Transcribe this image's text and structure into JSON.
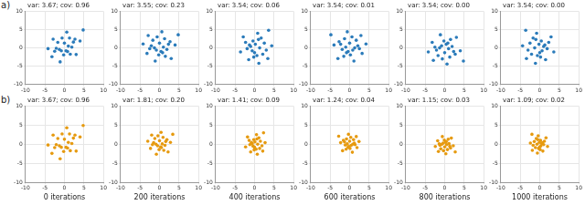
{
  "panel_labels": [
    "a)",
    "b)"
  ],
  "chart_data": [
    {
      "type": "scatter",
      "title": "var: 3.67; cov: 0.96",
      "color": "#2b7bba",
      "marker": "circle",
      "grid": true,
      "xlim": [
        -10,
        10
      ],
      "ylim": [
        -10,
        10
      ],
      "xticks": [
        -10,
        -5,
        0,
        5,
        10
      ],
      "yticks": [
        -10,
        -5,
        0,
        5,
        10
      ],
      "x": [
        0.4,
        -2.1,
        2.7,
        -0.6,
        1.5,
        -3.2,
        1.0,
        -1.1,
        4.0,
        -1.7,
        0.0,
        1.9,
        -4.2,
        0.6,
        -0.8,
        3.0,
        -2.5,
        1.3,
        -0.2,
        2.3,
        -1.3,
        0.8,
        -2.9,
        4.8
      ],
      "values": [
        -0.8,
        -0.1,
        2.4,
        2.7,
        -1.7,
        -2.4,
        0.5,
        -3.8,
        1.9,
        1.5,
        1.3,
        0.2,
        -0.2,
        4.3,
        -0.8,
        -1.8,
        -0.9,
        2.7,
        -1.9,
        1.6,
        -0.4,
        -1.0,
        2.4,
        4.9
      ]
    },
    {
      "type": "scatter",
      "title": "var: 3.55; cov: 0.23",
      "color": "#2b7bba",
      "marker": "circle",
      "grid": true,
      "xlim": [
        -10,
        10
      ],
      "ylim": [
        -10,
        10
      ],
      "xticks": [
        -10,
        -5,
        0,
        5,
        10
      ],
      "yticks": [
        -10,
        -5,
        0,
        5,
        10
      ],
      "x": [
        0.4,
        -2.1,
        2.7,
        -0.6,
        1.5,
        -3.2,
        1.0,
        -1.1,
        4.0,
        -1.7,
        0.0,
        1.9,
        -4.2,
        0.6,
        -0.8,
        3.0,
        -2.5,
        1.3,
        -0.2,
        2.3,
        -1.3,
        0.8,
        -2.9,
        4.8
      ],
      "values": [
        -1.0,
        0.6,
        1.7,
        3.0,
        -2.3,
        -1.5,
        0.2,
        -3.6,
        0.8,
        2.1,
        1.3,
        -0.4,
        1.1,
        4.4,
        -0.6,
        -2.9,
        -0.2,
        2.5,
        -1.9,
        1.0,
        0.0,
        -1.3,
        3.4,
        3.6
      ]
    },
    {
      "type": "scatter",
      "title": "var: 3.54; cov: 0.06",
      "color": "#2b7bba",
      "marker": "circle",
      "grid": true,
      "xlim": [
        -10,
        10
      ],
      "ylim": [
        -10,
        10
      ],
      "xticks": [
        -10,
        -5,
        0,
        5,
        10
      ],
      "yticks": [
        -10,
        -5,
        0,
        5,
        10
      ],
      "x": [
        -1.0,
        0.6,
        1.7,
        3.0,
        -2.3,
        -1.5,
        0.2,
        -3.6,
        0.8,
        2.1,
        1.3,
        -0.4,
        1.1,
        4.4,
        -0.6,
        -2.9,
        -0.2,
        2.5,
        -1.9,
        1.0,
        0.0,
        -1.3,
        3.4,
        3.6
      ],
      "values": [
        0.4,
        -2.1,
        2.7,
        -0.6,
        1.5,
        -3.2,
        1.0,
        -1.1,
        4.0,
        -1.7,
        0.0,
        1.9,
        -4.2,
        0.6,
        -0.8,
        3.0,
        -2.5,
        1.3,
        -0.2,
        2.3,
        -1.3,
        0.8,
        -2.9,
        4.8
      ]
    },
    {
      "type": "scatter",
      "title": "var: 3.54; cov: 0.01",
      "color": "#2b7bba",
      "marker": "circle",
      "grid": true,
      "xlim": [
        -10,
        10
      ],
      "ylim": [
        -10,
        10
      ],
      "xticks": [
        -10,
        -5,
        0,
        5,
        10
      ],
      "yticks": [
        -10,
        -5,
        0,
        5,
        10
      ],
      "x": [
        -0.4,
        2.1,
        -2.7,
        0.6,
        -1.5,
        3.2,
        -1.0,
        1.1,
        -4.0,
        1.7,
        0.0,
        -1.9,
        4.2,
        -0.6,
        0.8,
        -3.0,
        2.5,
        -1.3,
        0.2,
        -2.3,
        1.3,
        -0.8,
        2.9,
        -4.8
      ],
      "values": [
        -1.0,
        0.6,
        1.7,
        3.0,
        -2.3,
        -1.5,
        0.2,
        -3.6,
        0.8,
        2.1,
        1.3,
        -0.4,
        1.1,
        4.4,
        -0.6,
        -2.9,
        -0.2,
        2.5,
        -1.9,
        1.0,
        0.0,
        -1.3,
        3.4,
        3.6
      ]
    },
    {
      "type": "scatter",
      "title": "var: 3.54; cov: 0.00",
      "color": "#2b7bba",
      "marker": "circle",
      "grid": true,
      "xlim": [
        -10,
        10
      ],
      "ylim": [
        -10,
        10
      ],
      "xticks": [
        -10,
        -5,
        0,
        5,
        10
      ],
      "yticks": [
        -10,
        -5,
        0,
        5,
        10
      ],
      "x": [
        0.4,
        -2.1,
        2.7,
        -0.6,
        1.5,
        -3.2,
        1.0,
        -1.1,
        4.0,
        -1.7,
        0.0,
        1.9,
        -4.2,
        0.6,
        -0.8,
        3.0,
        -2.5,
        1.3,
        -0.2,
        2.3,
        -1.3,
        0.8,
        -2.9,
        4.8
      ],
      "values": [
        1.0,
        -0.6,
        -1.7,
        -3.0,
        2.3,
        1.5,
        -0.2,
        3.6,
        -0.8,
        -2.1,
        -1.3,
        0.4,
        -1.1,
        -4.4,
        0.6,
        2.9,
        0.2,
        -2.5,
        1.9,
        -1.0,
        0.0,
        1.3,
        -3.4,
        -3.6
      ]
    },
    {
      "type": "scatter",
      "title": "var: 3.54; cov: 0.00",
      "color": "#2b7bba",
      "marker": "circle",
      "grid": true,
      "xlim": [
        -10,
        10
      ],
      "ylim": [
        -10,
        10
      ],
      "xticks": [
        -10,
        -5,
        0,
        5,
        10
      ],
      "yticks": [
        -10,
        -5,
        0,
        5,
        10
      ],
      "x": [
        1.0,
        -0.6,
        -1.7,
        -3.0,
        2.3,
        1.5,
        -0.2,
        3.6,
        -0.8,
        -2.1,
        -1.3,
        0.4,
        -1.1,
        -4.4,
        0.6,
        2.9,
        0.2,
        -2.5,
        1.9,
        -1.0,
        0.0,
        1.3,
        -3.4,
        -3.6
      ],
      "values": [
        0.4,
        -2.1,
        2.7,
        -0.6,
        1.5,
        -3.2,
        1.0,
        -1.1,
        4.0,
        -1.7,
        0.0,
        1.9,
        -4.2,
        0.6,
        -0.8,
        3.0,
        -2.5,
        1.3,
        -0.2,
        2.3,
        -1.3,
        0.8,
        -2.9,
        4.8
      ]
    },
    {
      "type": "scatter",
      "title": "var: 3.67; cov: 0.96",
      "xlabel": "0 iterations",
      "color": "#e69a0f",
      "marker": "circle",
      "grid": true,
      "xlim": [
        -10,
        10
      ],
      "ylim": [
        -10,
        10
      ],
      "xticks": [
        -10,
        -5,
        0,
        5,
        10
      ],
      "yticks": [
        -10,
        -5,
        0,
        5,
        10
      ],
      "x": [
        0.4,
        -2.1,
        2.7,
        -0.6,
        1.5,
        -3.2,
        1.0,
        -1.1,
        4.0,
        -1.7,
        0.0,
        1.9,
        -4.2,
        0.6,
        -0.8,
        3.0,
        -2.5,
        1.3,
        -0.2,
        2.3,
        -1.3,
        0.8,
        -2.9,
        4.8
      ],
      "values": [
        -0.8,
        -0.1,
        2.4,
        2.7,
        -1.7,
        -2.4,
        0.5,
        -3.8,
        1.9,
        1.5,
        1.3,
        0.2,
        -0.2,
        4.3,
        -0.8,
        -1.8,
        -0.9,
        2.7,
        -1.9,
        1.6,
        -0.4,
        -1.0,
        2.4,
        4.9
      ]
    },
    {
      "type": "scatter",
      "title": "var: 1.81; cov: 0.20",
      "xlabel": "200 iterations",
      "color": "#e69a0f",
      "marker": "circle",
      "grid": true,
      "xlim": [
        -10,
        10
      ],
      "ylim": [
        -10,
        10
      ],
      "xticks": [
        -10,
        -5,
        0,
        5,
        10
      ],
      "yticks": [
        -10,
        -5,
        0,
        5,
        10
      ],
      "x": [
        0.3,
        -1.5,
        1.9,
        -0.4,
        1.1,
        -2.3,
        0.7,
        -0.8,
        2.8,
        -1.2,
        0.0,
        1.4,
        -3.0,
        0.4,
        -0.5,
        2.2,
        -1.8,
        0.9,
        -0.1,
        1.6,
        -0.9,
        0.5,
        -2.0,
        3.4
      ],
      "values": [
        -0.7,
        0.4,
        1.2,
        2.2,
        -1.6,
        -1.1,
        0.1,
        -2.6,
        0.5,
        1.5,
        0.9,
        -0.3,
        0.8,
        3.1,
        -0.4,
        -2.0,
        -0.1,
        1.8,
        -1.4,
        0.7,
        0.0,
        -0.9,
        2.4,
        2.6
      ]
    },
    {
      "type": "scatter",
      "title": "var: 1.41; cov: 0.09",
      "xlabel": "400 iterations",
      "color": "#e69a0f",
      "marker": "circle",
      "grid": true,
      "xlim": [
        -10,
        10
      ],
      "ylim": [
        -10,
        10
      ],
      "xticks": [
        -10,
        -5,
        0,
        5,
        10
      ],
      "yticks": [
        -10,
        -5,
        0,
        5,
        10
      ],
      "x": [
        -0.6,
        0.4,
        1.1,
        1.9,
        -1.4,
        -1.0,
        0.1,
        -2.3,
        0.5,
        1.3,
        0.8,
        -0.2,
        0.7,
        2.7,
        -0.4,
        -1.8,
        -0.1,
        1.5,
        -1.2,
        0.6,
        0.0,
        -0.8,
        2.1,
        2.3
      ],
      "values": [
        0.2,
        -1.3,
        1.7,
        -0.4,
        1.0,
        -2.0,
        0.6,
        -0.7,
        2.5,
        -1.1,
        0.0,
        1.2,
        -2.6,
        0.4,
        -0.5,
        1.9,
        -1.5,
        0.8,
        -0.1,
        1.4,
        -0.8,
        0.5,
        -1.8,
        3.0
      ]
    },
    {
      "type": "scatter",
      "title": "var: 1.24; cov: 0.04",
      "xlabel": "600 iterations",
      "color": "#e69a0f",
      "marker": "circle",
      "grid": true,
      "xlim": [
        -10,
        10
      ],
      "ylim": [
        -10,
        10
      ],
      "xticks": [
        -10,
        -5,
        0,
        5,
        10
      ],
      "yticks": [
        -10,
        -5,
        0,
        5,
        10
      ],
      "x": [
        -0.2,
        1.2,
        -1.6,
        0.3,
        -0.9,
        1.9,
        -0.6,
        0.7,
        -2.3,
        1.0,
        0.0,
        -1.1,
        2.4,
        -0.3,
        0.4,
        -1.8,
        1.4,
        -0.8,
        0.1,
        -1.3,
        0.8,
        -0.4,
        1.7,
        -2.8
      ],
      "values": [
        -0.6,
        0.3,
        1.0,
        1.8,
        -1.3,
        -0.9,
        0.1,
        -2.1,
        0.4,
        1.2,
        0.8,
        -0.2,
        0.7,
        2.6,
        -0.3,
        -1.7,
        -0.1,
        1.4,
        -1.1,
        0.6,
        0.0,
        -0.8,
        2.0,
        2.1
      ]
    },
    {
      "type": "scatter",
      "title": "var: 1.15; cov: 0.03",
      "xlabel": "800 iterations",
      "color": "#e69a0f",
      "marker": "circle",
      "grid": true,
      "xlim": [
        -10,
        10
      ],
      "ylim": [
        -10,
        10
      ],
      "xticks": [
        -10,
        -5,
        0,
        5,
        10
      ],
      "yticks": [
        -10,
        -5,
        0,
        5,
        10
      ],
      "x": [
        0.2,
        -1.2,
        1.5,
        -0.3,
        0.9,
        -1.8,
        0.5,
        -0.6,
        2.2,
        -1.0,
        0.0,
        1.1,
        -2.4,
        0.3,
        -0.4,
        1.7,
        -1.4,
        0.7,
        -0.1,
        1.3,
        -0.7,
        0.4,
        -1.6,
        2.7
      ],
      "values": [
        0.5,
        -0.3,
        -1.0,
        -1.7,
        1.3,
        0.9,
        -0.1,
        2.0,
        -0.4,
        -1.2,
        -0.7,
        0.2,
        -0.6,
        -2.5,
        0.3,
        1.6,
        0.1,
        -1.4,
        1.1,
        -0.5,
        0.0,
        0.7,
        -1.9,
        -2.0
      ]
    },
    {
      "type": "scatter",
      "title": "var: 1.09; cov: 0.02",
      "xlabel": "1000 iterations",
      "color": "#e69a0f",
      "marker": "circle",
      "grid": true,
      "xlim": [
        -10,
        10
      ],
      "ylim": [
        -10,
        10
      ],
      "xticks": [
        -10,
        -5,
        0,
        5,
        10
      ],
      "yticks": [
        -10,
        -5,
        0,
        5,
        10
      ],
      "x": [
        0.5,
        -0.3,
        -0.9,
        -1.7,
        1.2,
        0.8,
        -0.1,
        2.0,
        -0.4,
        -1.1,
        -0.7,
        0.2,
        -0.6,
        -2.4,
        0.3,
        1.6,
        0.1,
        -1.4,
        1.0,
        -0.5,
        0.0,
        0.7,
        -1.9,
        -2.0
      ],
      "values": [
        0.2,
        -1.1,
        1.5,
        -0.3,
        0.8,
        -1.8,
        0.5,
        -0.6,
        2.2,
        -0.9,
        0.0,
        1.0,
        -2.3,
        0.3,
        -0.4,
        1.7,
        -1.4,
        0.7,
        -0.1,
        1.2,
        -0.7,
        0.4,
        -1.6,
        2.6
      ]
    }
  ]
}
